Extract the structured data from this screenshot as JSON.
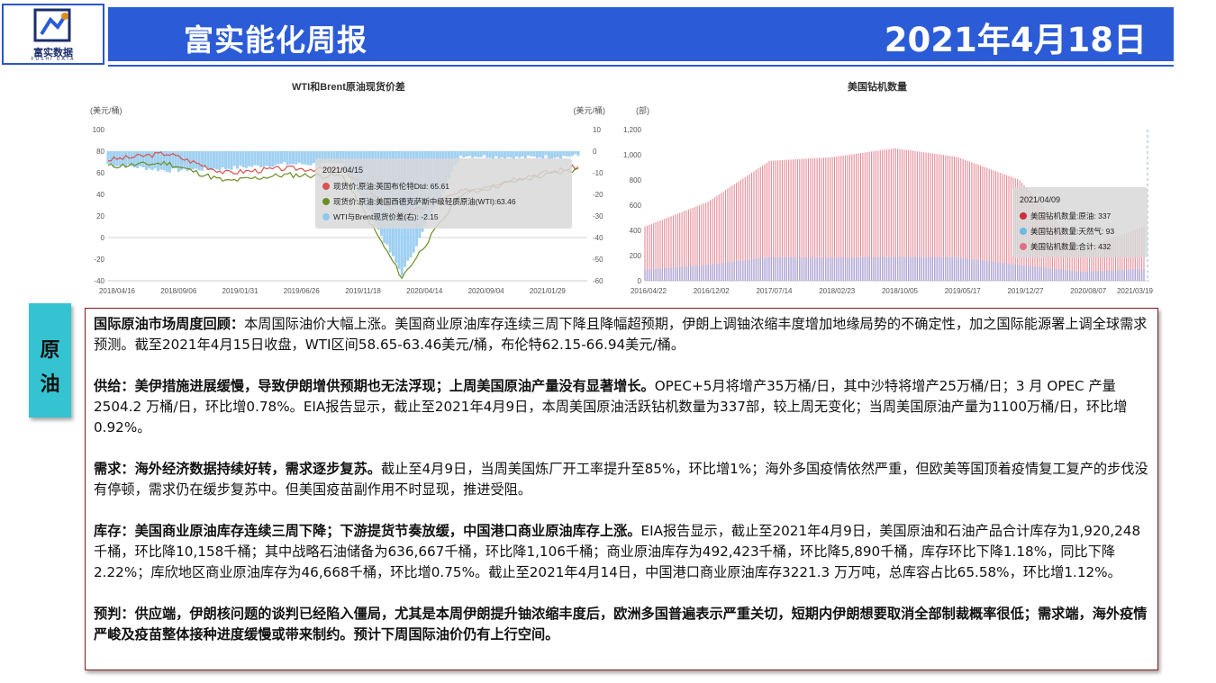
{
  "logo": {
    "text": "富实数据",
    "subtext": "FUSHI DATA"
  },
  "header": {
    "title": "富实能化周报",
    "date": "2021年4月18日"
  },
  "charts": {
    "left": {
      "title": "WTI和Brent原油现货价差",
      "left_unit": "(美元/桶)",
      "right_unit": "(美元/桶)",
      "y_ticks": [
        "100",
        "80",
        "60",
        "40",
        "20",
        "0",
        "-20",
        "-40"
      ],
      "y2_ticks": [
        "10",
        "0",
        "-10",
        "-20",
        "-30",
        "-40",
        "-50",
        "-60"
      ],
      "x_ticks": [
        "2018/04/16",
        "2018/09/06",
        "2019/01/31",
        "2019/06/26",
        "2019/11/18",
        "2020/04/14",
        "2020/09/04",
        "2021/01/29"
      ],
      "tooltip": {
        "date": "2021/04/15",
        "items": [
          {
            "label": "现货价:原油:英国布伦特Dtd: 65.61",
            "color": "#d9534f"
          },
          {
            "label": "现货价:原油:美国西德克萨斯中级轻质原油(WTI):63.46",
            "color": "#6b8e23"
          },
          {
            "label": "WTI与Brent现货价差(右): -2.15",
            "color": "#8fc8ee"
          }
        ]
      }
    },
    "right": {
      "title": "美国钻机数量",
      "unit": "(部)",
      "y_ticks": [
        "1,200",
        "1,000",
        "800",
        "600",
        "400",
        "200",
        "0"
      ],
      "x_ticks": [
        "2016/04/22",
        "2016/12/02",
        "2017/07/14",
        "2018/02/23",
        "2018/10/05",
        "2019/05/17",
        "2019/12/27",
        "2020/08/07",
        "2021/03/19"
      ],
      "tooltip": {
        "date": "2021/04/09",
        "items": [
          {
            "label": "美国钻机数量:原油: 337",
            "color": "#c9303a"
          },
          {
            "label": "美国钻机数量:天然气: 93",
            "color": "#6cb8e6"
          },
          {
            "label": "美国钻机数量:合计: 432",
            "color": "#e07080"
          }
        ]
      }
    }
  },
  "chart_data": [
    {
      "type": "line",
      "title": "WTI和Brent原油现货价差",
      "x": [
        "2018/04/16",
        "2018/09/06",
        "2019/01/31",
        "2019/06/26",
        "2019/11/18",
        "2020/04/14",
        "2020/09/04",
        "2021/01/29",
        "2021/04/15"
      ],
      "series": [
        {
          "name": "现货价:原油:英国布伦特Dtd",
          "values": [
            72,
            78,
            60,
            64,
            63,
            20,
            42,
            56,
            65.61
          ]
        },
        {
          "name": "现货价:原油:美国西德克萨斯中级轻质原油(WTI)",
          "values": [
            66,
            69,
            52,
            58,
            57,
            -37,
            40,
            53,
            63.46
          ]
        },
        {
          "name": "WTI与Brent现货价差(右)",
          "values": [
            -6,
            -9,
            -8,
            -6,
            -6,
            -57,
            -2,
            -3,
            -2.15
          ]
        }
      ],
      "ylim": [
        -40,
        100
      ],
      "y2lim": [
        -60,
        10
      ]
    },
    {
      "type": "bar",
      "title": "美国钻机数量",
      "x": [
        "2016/04/22",
        "2016/12/02",
        "2017/07/14",
        "2018/02/23",
        "2018/10/05",
        "2019/05/17",
        "2019/12/27",
        "2020/08/07",
        "2021/03/19"
      ],
      "series": [
        {
          "name": "美国钻机数量:原油",
          "values": [
            343,
            498,
            765,
            798,
            861,
            797,
            677,
            176,
            337
          ]
        },
        {
          "name": "美国钻机数量:天然气",
          "values": [
            87,
            125,
            187,
            183,
            189,
            187,
            125,
            71,
            93
          ]
        },
        {
          "name": "美国钻机数量:合计",
          "values": [
            431,
            624,
            952,
            981,
            1052,
            984,
            802,
            247,
            432
          ]
        }
      ],
      "ylim": [
        0,
        1200
      ]
    }
  ],
  "side_tab": {
    "chars": [
      "原",
      "油"
    ]
  },
  "content": {
    "p1": {
      "bold": "国际原油市场周度回顾：",
      "text": "本周国际油价大幅上涨。美国商业原油库存连续三周下降且降幅超预期，伊朗上调铀浓缩丰度增加地缘局势的不确定性，加之国际能源署上调全球需求预测。截至2021年4月15日收盘，WTI区间58.65-63.46美元/桶，布伦特62.15-66.94美元/桶。"
    },
    "p2": {
      "bold": "供给：美伊措施进展缓慢，导致伊朗增供预期也无法浮现；上周美国原油产量没有显著增长。",
      "text": "OPEC+5月将增产35万桶/日，其中沙特将增产25万桶/日；3 月 OPEC 产量 2504.2 万桶/日，环比增0.78%。EIA报告显示，截止至2021年4月9日，本周美国原油活跃钻机数量为337部，较上周无变化；当周美国原油产量为1100万桶/日，环比增0.92%。"
    },
    "p3": {
      "bold": "需求：海外经济数据持续好转，需求逐步复苏。",
      "text": "截止至4月9日，当周美国炼厂开工率提升至85%，环比增1%；海外多国疫情依然严重，但欧美等国顶着疫情复工复产的步伐没有停顿，需求仍在缓步复苏中。但美国疫苗副作用不时显现，推进受阻。"
    },
    "p4": {
      "bold": "库存：美国商业原油库存连续三周下降；下游提货节奏放缓，中国港口商业原油库存上涨。",
      "text": "EIA报告显示，截止至2021年4月9日，美国原油和石油产品合计库存为1,920,248千桶，环比降10,158千桶；其中战略石油储备为636,667千桶，环比降1,106千桶；商业原油库存为492,423千桶，环比降5,890千桶，库存环比下降1.18%，同比下降2.22%；库欣地区商业原油库存为46,668千桶，环比增0.75%。截止至2021年4月14日，中国港口商业原油库存3221.3 万万吨，总库容占比65.58%，环比增1.12%。"
    },
    "p5": {
      "bold": "预判：供应端，伊朗核问题的谈判已经陷入僵局，尤其是本周伊朗提升铀浓缩丰度后，欧洲多国普遍表示严重关切，短期内伊朗想要取消全部制裁概率很低；需求端，海外疫情严峻及疫苗整体接种进度缓慢或带来制约。预计下周国际油价仍有上行空间。",
      "text": ""
    }
  }
}
